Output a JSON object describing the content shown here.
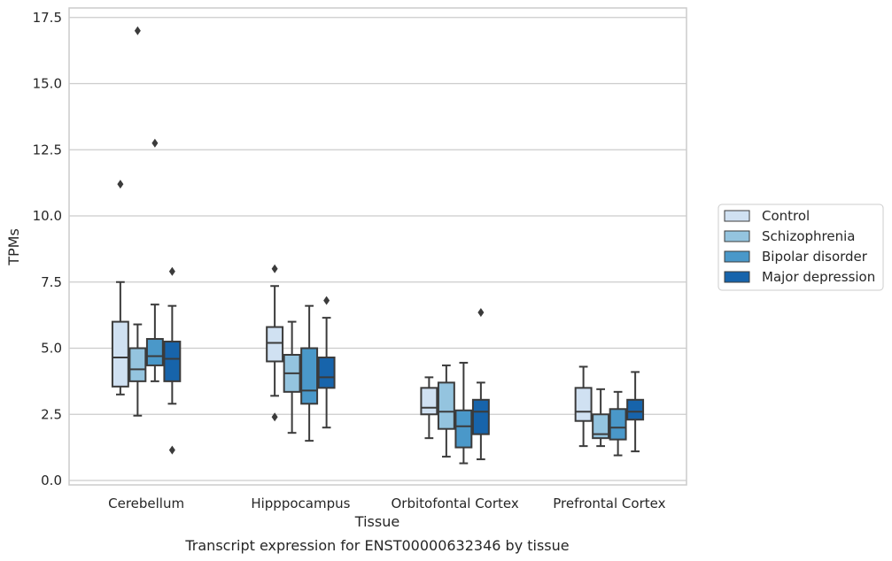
{
  "chart_data": {
    "type": "box",
    "title": "",
    "caption": "Transcript expression for ENST00000632346 by tissue",
    "xlabel": "Tissue",
    "ylabel": "TPMs",
    "ylim": [
      -0.2,
      17.8
    ],
    "yticks": [
      0.0,
      2.5,
      5.0,
      7.5,
      10.0,
      12.5,
      15.0,
      17.5
    ],
    "ytick_labels": [
      "0.0",
      "2.5",
      "5.0",
      "7.5",
      "10.0",
      "12.5",
      "15.0",
      "17.5"
    ],
    "grid": "horizontal",
    "legend_position": "right",
    "categories": [
      "Cerebellum",
      "Hipppocampus",
      "Orbitofontal Cortex",
      "Prefrontal Cortex"
    ],
    "series": [
      {
        "name": "Control",
        "color": "#d0e1f2",
        "boxes": [
          {
            "whislo": 3.25,
            "q1": 3.55,
            "med": 4.65,
            "q3": 6.0,
            "whishi": 7.5,
            "fliers": [
              11.2
            ]
          },
          {
            "whislo": 3.2,
            "q1": 4.5,
            "med": 5.2,
            "q3": 5.8,
            "whishi": 7.35,
            "fliers": [
              8.0,
              2.4
            ]
          },
          {
            "whislo": 1.6,
            "q1": 2.5,
            "med": 2.75,
            "q3": 3.5,
            "whishi": 3.9,
            "fliers": []
          },
          {
            "whislo": 1.3,
            "q1": 2.25,
            "med": 2.6,
            "q3": 3.5,
            "whishi": 4.3,
            "fliers": []
          }
        ]
      },
      {
        "name": "Schizophrenia",
        "color": "#94c4df",
        "boxes": [
          {
            "whislo": 2.45,
            "q1": 3.75,
            "med": 4.2,
            "q3": 5.0,
            "whishi": 5.9,
            "fliers": [
              17.0
            ]
          },
          {
            "whislo": 1.8,
            "q1": 3.35,
            "med": 4.05,
            "q3": 4.75,
            "whishi": 6.0,
            "fliers": []
          },
          {
            "whislo": 0.9,
            "q1": 1.95,
            "med": 2.6,
            "q3": 3.7,
            "whishi": 4.35,
            "fliers": []
          },
          {
            "whislo": 1.3,
            "q1": 1.6,
            "med": 1.75,
            "q3": 2.5,
            "whishi": 3.45,
            "fliers": []
          }
        ]
      },
      {
        "name": "Bipolar disorder",
        "color": "#4a98c9",
        "boxes": [
          {
            "whislo": 3.75,
            "q1": 4.35,
            "med": 4.7,
            "q3": 5.35,
            "whishi": 6.65,
            "fliers": [
              12.75
            ]
          },
          {
            "whislo": 1.5,
            "q1": 2.9,
            "med": 3.4,
            "q3": 5.0,
            "whishi": 6.6,
            "fliers": []
          },
          {
            "whislo": 0.65,
            "q1": 1.25,
            "med": 2.05,
            "q3": 2.65,
            "whishi": 4.45,
            "fliers": []
          },
          {
            "whislo": 0.95,
            "q1": 1.55,
            "med": 2.0,
            "q3": 2.7,
            "whishi": 3.35,
            "fliers": []
          }
        ]
      },
      {
        "name": "Major depression",
        "color": "#1764ab",
        "boxes": [
          {
            "whislo": 2.9,
            "q1": 3.75,
            "med": 4.6,
            "q3": 5.25,
            "whishi": 6.6,
            "fliers": [
              7.9,
              1.15
            ]
          },
          {
            "whislo": 2.0,
            "q1": 3.5,
            "med": 3.9,
            "q3": 4.65,
            "whishi": 6.15,
            "fliers": [
              6.8
            ]
          },
          {
            "whislo": 0.8,
            "q1": 1.75,
            "med": 2.6,
            "q3": 3.05,
            "whishi": 3.7,
            "fliers": [
              6.35
            ]
          },
          {
            "whislo": 1.1,
            "q1": 2.3,
            "med": 2.6,
            "q3": 3.05,
            "whishi": 4.1,
            "fliers": []
          }
        ]
      }
    ]
  }
}
